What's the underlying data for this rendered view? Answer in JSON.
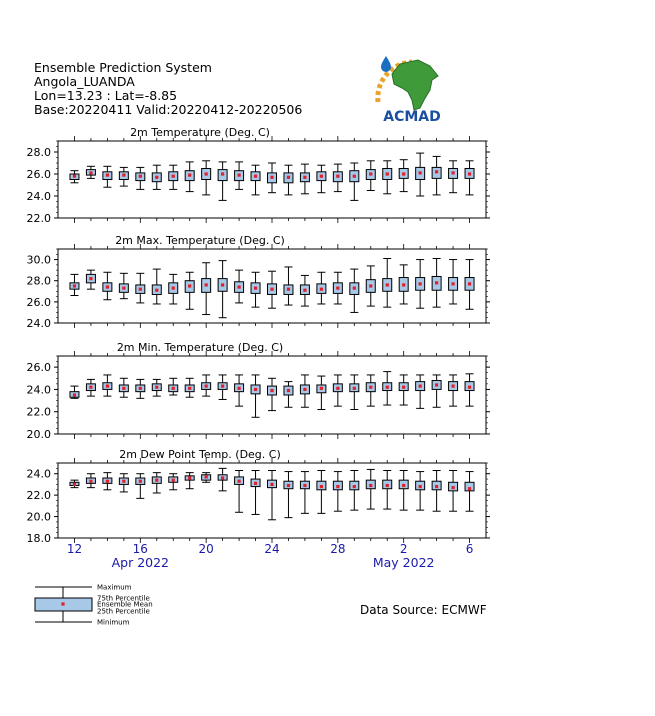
{
  "header": {
    "title": "Ensemble Prediction System",
    "location": "Angola_LUANDA",
    "coords": "Lon=13.23 : Lat=-8.85",
    "dates": "Base:20220411 Valid:20220412-20220506"
  },
  "logo": {
    "text": "ACMAD"
  },
  "x_axis": {
    "ticks": [
      {
        "label": "12",
        "day": 12
      },
      {
        "label": "16",
        "day": 16
      },
      {
        "label": "20",
        "day": 20
      },
      {
        "label": "24",
        "day": 24
      },
      {
        "label": "28",
        "day": 28
      },
      {
        "label": "2",
        "day": 32
      },
      {
        "label": "6",
        "day": 36
      }
    ],
    "months": [
      {
        "label": "Apr 2022",
        "day": 16
      },
      {
        "label": "May 2022",
        "day": 32
      }
    ]
  },
  "legend": {
    "labels": [
      "Maximum",
      "75th Percentile",
      "Ensemble Mean",
      "25th Percentile",
      "Minimum"
    ]
  },
  "source": "Data Source: ECMWF",
  "colors": {
    "box_fill": "#a8c8e8",
    "mean": "#e0202a",
    "axis_label": "#1a1aaa"
  },
  "chart_data": [
    {
      "type": "box",
      "title": "2m Temperature (Deg. C)",
      "ylim": [
        22,
        29
      ],
      "yticks": [
        "22.0",
        "24.0",
        "26.0",
        "28.0"
      ],
      "x_days": [
        12,
        13,
        14,
        15,
        16,
        17,
        18,
        19,
        20,
        21,
        22,
        23,
        24,
        25,
        26,
        27,
        28,
        29,
        30,
        31,
        32,
        33,
        34,
        35,
        36
      ],
      "min": [
        25.2,
        25.6,
        24.8,
        24.9,
        24.6,
        24.6,
        24.6,
        24.4,
        24.1,
        23.6,
        24.6,
        24.1,
        24.3,
        24.1,
        24.2,
        24.3,
        24.4,
        23.6,
        24.5,
        24.2,
        24.4,
        24.0,
        24.1,
        24.3,
        24.1
      ],
      "q25": [
        25.5,
        25.9,
        25.5,
        25.5,
        25.4,
        25.3,
        25.4,
        25.4,
        25.5,
        25.4,
        25.4,
        25.4,
        25.2,
        25.2,
        25.3,
        25.4,
        25.3,
        25.3,
        25.5,
        25.5,
        25.6,
        25.5,
        25.6,
        25.6,
        25.6
      ],
      "mean": [
        25.8,
        26.1,
        25.9,
        25.9,
        25.8,
        25.7,
        25.8,
        25.9,
        26.0,
        26.0,
        25.9,
        25.8,
        25.7,
        25.7,
        25.7,
        25.8,
        25.8,
        25.8,
        26.0,
        26.0,
        26.0,
        26.1,
        26.2,
        26.1,
        26.0
      ],
      "q75": [
        26.0,
        26.4,
        26.2,
        26.2,
        26.1,
        26.1,
        26.2,
        26.3,
        26.5,
        26.4,
        26.3,
        26.2,
        26.1,
        26.1,
        26.1,
        26.2,
        26.2,
        26.3,
        26.4,
        26.5,
        26.5,
        26.6,
        26.6,
        26.5,
        26.5
      ],
      "max": [
        26.3,
        26.7,
        26.7,
        26.6,
        26.6,
        26.8,
        26.8,
        27.1,
        27.2,
        27.1,
        27.1,
        26.8,
        27.0,
        26.8,
        26.9,
        26.8,
        26.9,
        27.0,
        27.2,
        27.2,
        27.3,
        27.9,
        27.6,
        27.2,
        27.2
      ]
    },
    {
      "type": "box",
      "title": "2m Max. Temperature (Deg. C)",
      "ylim": [
        24,
        31
      ],
      "yticks": [
        "24.0",
        "26.0",
        "28.0",
        "30.0"
      ],
      "x_days": [
        12,
        13,
        14,
        15,
        16,
        17,
        18,
        19,
        20,
        21,
        22,
        23,
        24,
        25,
        26,
        27,
        28,
        29,
        30,
        31,
        32,
        33,
        34,
        35,
        36
      ],
      "min": [
        26.6,
        27.2,
        26.2,
        26.3,
        25.9,
        25.8,
        25.8,
        25.3,
        24.8,
        24.5,
        25.9,
        25.5,
        25.4,
        25.7,
        25.6,
        25.8,
        25.8,
        25.0,
        25.6,
        25.5,
        25.8,
        25.4,
        25.5,
        25.8,
        25.3
      ],
      "q25": [
        27.2,
        27.8,
        27.0,
        26.9,
        26.8,
        26.7,
        26.8,
        26.9,
        26.9,
        27.0,
        26.9,
        26.8,
        26.7,
        26.7,
        26.7,
        26.8,
        26.8,
        26.7,
        26.9,
        27.0,
        27.0,
        27.1,
        27.1,
        27.1,
        27.1
      ],
      "mean": [
        27.5,
        28.2,
        27.4,
        27.3,
        27.2,
        27.1,
        27.3,
        27.5,
        27.6,
        27.6,
        27.4,
        27.3,
        27.2,
        27.2,
        27.1,
        27.2,
        27.3,
        27.3,
        27.5,
        27.6,
        27.6,
        27.7,
        27.8,
        27.7,
        27.7
      ],
      "q75": [
        27.8,
        28.6,
        27.8,
        27.7,
        27.6,
        27.6,
        27.8,
        28.0,
        28.2,
        28.2,
        27.9,
        27.8,
        27.7,
        27.6,
        27.6,
        27.7,
        27.8,
        27.8,
        28.1,
        28.2,
        28.3,
        28.3,
        28.4,
        28.3,
        28.3
      ],
      "max": [
        28.6,
        29.0,
        28.8,
        28.7,
        28.7,
        29.1,
        28.6,
        28.8,
        29.7,
        29.9,
        29.0,
        28.8,
        28.9,
        29.3,
        28.5,
        28.8,
        28.8,
        29.1,
        29.4,
        30.1,
        29.5,
        30.0,
        30.1,
        30.0,
        30.0
      ]
    },
    {
      "type": "box",
      "title": "2m Min. Temperature (Deg. C)",
      "ylim": [
        20,
        27
      ],
      "yticks": [
        "20.0",
        "22.0",
        "24.0",
        "26.0"
      ],
      "x_days": [
        12,
        13,
        14,
        15,
        16,
        17,
        18,
        19,
        20,
        21,
        22,
        23,
        24,
        25,
        26,
        27,
        28,
        29,
        30,
        31,
        32,
        33,
        34,
        35,
        36
      ],
      "min": [
        23.2,
        23.4,
        23.4,
        23.3,
        23.2,
        23.4,
        23.5,
        23.3,
        23.4,
        23.1,
        22.5,
        21.5,
        22.1,
        22.4,
        22.4,
        22.2,
        22.5,
        22.2,
        22.5,
        22.6,
        22.6,
        22.3,
        22.4,
        22.5,
        22.5
      ],
      "q25": [
        23.3,
        23.9,
        24.0,
        23.8,
        23.8,
        23.9,
        23.8,
        23.8,
        24.0,
        24.0,
        23.8,
        23.6,
        23.5,
        23.5,
        23.6,
        23.7,
        23.8,
        23.8,
        23.8,
        23.9,
        23.9,
        23.9,
        24.0,
        23.9,
        23.9
      ],
      "mean": [
        23.5,
        24.2,
        24.3,
        24.1,
        24.1,
        24.2,
        24.1,
        24.1,
        24.3,
        24.3,
        24.1,
        24.0,
        23.9,
        23.9,
        24.0,
        24.1,
        24.1,
        24.1,
        24.2,
        24.2,
        24.2,
        24.3,
        24.4,
        24.3,
        24.2
      ],
      "q75": [
        23.8,
        24.5,
        24.6,
        24.4,
        24.4,
        24.5,
        24.4,
        24.4,
        24.6,
        24.6,
        24.5,
        24.4,
        24.3,
        24.3,
        24.4,
        24.4,
        24.5,
        24.5,
        24.6,
        24.6,
        24.6,
        24.7,
        24.8,
        24.7,
        24.7
      ],
      "max": [
        24.3,
        24.9,
        25.3,
        25.0,
        24.9,
        24.9,
        25.0,
        25.0,
        25.3,
        25.3,
        25.3,
        25.3,
        25.0,
        24.7,
        25.3,
        25.2,
        25.3,
        25.3,
        25.3,
        25.6,
        25.3,
        25.3,
        25.3,
        25.3,
        25.4
      ]
    },
    {
      "type": "box",
      "title": "2m Dew Point Temp. (Deg. C)",
      "ylim": [
        18,
        25
      ],
      "yticks": [
        "18.0",
        "20.0",
        "22.0",
        "24.0"
      ],
      "x_days": [
        12,
        13,
        14,
        15,
        16,
        17,
        18,
        19,
        20,
        21,
        22,
        23,
        24,
        25,
        26,
        27,
        28,
        29,
        30,
        31,
        32,
        33,
        34,
        35,
        36
      ],
      "min": [
        22.7,
        22.7,
        22.5,
        22.3,
        21.7,
        22.2,
        22.5,
        22.6,
        23.2,
        22.4,
        20.4,
        20.2,
        19.7,
        19.9,
        20.3,
        20.3,
        20.5,
        20.6,
        20.7,
        20.7,
        20.6,
        20.6,
        20.5,
        20.5,
        20.5
      ],
      "q25": [
        22.9,
        23.1,
        23.1,
        23.0,
        23.0,
        23.1,
        23.2,
        23.4,
        23.4,
        23.4,
        23.0,
        22.8,
        22.7,
        22.6,
        22.6,
        22.5,
        22.5,
        22.5,
        22.6,
        22.6,
        22.6,
        22.5,
        22.5,
        22.4,
        22.4
      ],
      "mean": [
        23.0,
        23.3,
        23.3,
        23.3,
        23.3,
        23.4,
        23.4,
        23.6,
        23.7,
        23.6,
        23.3,
        23.1,
        23.0,
        22.9,
        22.9,
        22.8,
        22.8,
        22.8,
        22.9,
        22.9,
        22.9,
        22.8,
        22.8,
        22.7,
        22.6
      ],
      "q75": [
        23.2,
        23.6,
        23.6,
        23.6,
        23.6,
        23.7,
        23.7,
        23.8,
        23.9,
        23.9,
        23.7,
        23.5,
        23.4,
        23.3,
        23.3,
        23.3,
        23.3,
        23.3,
        23.4,
        23.4,
        23.4,
        23.3,
        23.3,
        23.2,
        23.2
      ],
      "max": [
        23.4,
        24.0,
        24.1,
        24.0,
        24.0,
        24.1,
        24.0,
        24.1,
        24.1,
        24.5,
        24.3,
        24.3,
        24.3,
        24.2,
        24.2,
        24.3,
        24.2,
        24.3,
        24.4,
        24.3,
        24.3,
        24.2,
        24.3,
        24.3,
        24.2
      ]
    }
  ]
}
